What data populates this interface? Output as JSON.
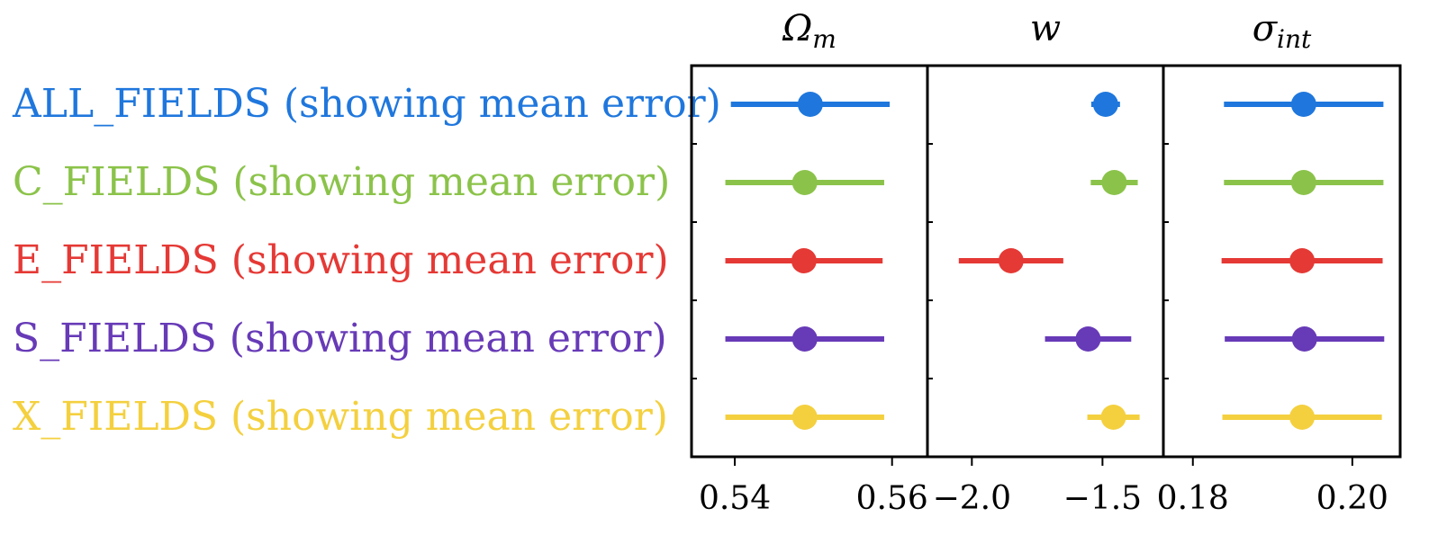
{
  "chart_data": {
    "type": "scatter",
    "description_free": true,
    "colors": {
      "ALL_FIELDS": "#1f77dd",
      "C_FIELDS": "#8bc34a",
      "E_FIELDS": "#e53935",
      "S_FIELDS": "#673ab7",
      "X_FIELDS": "#f4d03f"
    },
    "rows": [
      {
        "label": "ALL_FIELDS (showing mean error)",
        "key": "ALL_FIELDS"
      },
      {
        "label": "C_FIELDS (showing mean error)",
        "key": "C_FIELDS"
      },
      {
        "label": "E_FIELDS (showing mean error)",
        "key": "E_FIELDS"
      },
      {
        "label": "S_FIELDS (showing mean error)",
        "key": "S_FIELDS"
      },
      {
        "label": "X_FIELDS (showing mean error)",
        "key": "X_FIELDS"
      }
    ],
    "panels": [
      {
        "title": "Ωm",
        "title_main": "Ω",
        "title_sub": "m",
        "xlim": [
          0.5345,
          0.5645
        ],
        "ticks": [
          0.54,
          0.56
        ],
        "tick_labels": [
          "0.54",
          "0.56"
        ],
        "values": [
          {
            "x": 0.5496,
            "err": 0.0101
          },
          {
            "x": 0.5489,
            "err": 0.0101
          },
          {
            "x": 0.5488,
            "err": 0.01
          },
          {
            "x": 0.5489,
            "err": 0.0101
          },
          {
            "x": 0.5489,
            "err": 0.0101
          }
        ]
      },
      {
        "title": "w",
        "title_main": "w",
        "title_sub": "",
        "xlim": [
          -2.17,
          -1.267
        ],
        "ticks": [
          -2.0,
          -1.5
        ],
        "tick_labels": [
          "−2.0",
          "−1.5"
        ],
        "values": [
          {
            "x": -1.488,
            "err": 0.055
          },
          {
            "x": -1.455,
            "err": 0.09
          },
          {
            "x": -1.85,
            "err": 0.2
          },
          {
            "x": -1.555,
            "err": 0.165
          },
          {
            "x": -1.458,
            "err": 0.1
          }
        ]
      },
      {
        "title": "σint",
        "title_main": "σ",
        "title_sub": "int",
        "xlim": [
          0.1763,
          0.206
        ],
        "ticks": [
          0.18,
          0.2
        ],
        "tick_labels": [
          "0.18",
          "0.20"
        ],
        "values": [
          {
            "x": 0.1939,
            "err": 0.01
          },
          {
            "x": 0.1939,
            "err": 0.01
          },
          {
            "x": 0.1937,
            "err": 0.0101
          },
          {
            "x": 0.194,
            "err": 0.01
          },
          {
            "x": 0.1937,
            "err": 0.01
          }
        ]
      }
    ]
  }
}
